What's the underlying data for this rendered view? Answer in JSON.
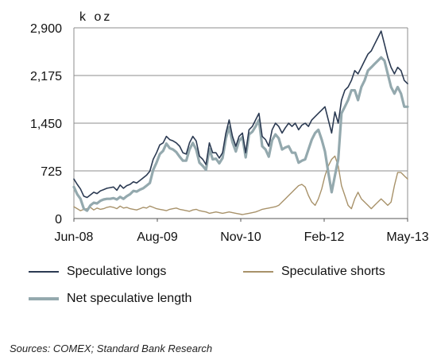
{
  "chart_data": {
    "type": "line",
    "unit_label": "k oz",
    "x_ticks": [
      "Jun-08",
      "Aug-09",
      "Nov-10",
      "Feb-12",
      "May-13"
    ],
    "y_ticks": [
      "2,900",
      "2,175",
      "1,450",
      "725",
      "0"
    ],
    "ylim": [
      0,
      2900
    ],
    "grid": true,
    "legend_position": "bottom",
    "series": [
      {
        "name": "Speculative longs",
        "color": "#2b3a52",
        "values": [
          600,
          520,
          450,
          340,
          320,
          360,
          400,
          380,
          420,
          440,
          460,
          470,
          480,
          430,
          510,
          460,
          500,
          520,
          560,
          540,
          580,
          620,
          660,
          720,
          900,
          1000,
          1120,
          1150,
          1250,
          1200,
          1180,
          1150,
          1100,
          1000,
          980,
          1150,
          1250,
          1180,
          950,
          900,
          820,
          1150,
          1000,
          1000,
          920,
          1000,
          1300,
          1500,
          1250,
          1100,
          1250,
          1300,
          1000,
          1350,
          1400,
          1500,
          1600,
          1250,
          1200,
          1100,
          1350,
          1450,
          1400,
          1300,
          1380,
          1450,
          1400,
          1450,
          1350,
          1420,
          1450,
          1400,
          1500,
          1550,
          1600,
          1650,
          1700,
          1500,
          1300,
          1620,
          1450,
          1800,
          1950,
          2000,
          2100,
          2250,
          2200,
          2300,
          2400,
          2500,
          2550,
          2650,
          2750,
          2850,
          2650,
          2450,
          2300,
          2200,
          2300,
          2250,
          2100,
          2050
        ]
      },
      {
        "name": "Speculative shorts",
        "color": "#a8926a",
        "values": [
          180,
          150,
          120,
          140,
          150,
          170,
          130,
          160,
          140,
          150,
          170,
          180,
          170,
          150,
          190,
          160,
          170,
          150,
          140,
          130,
          150,
          170,
          160,
          190,
          170,
          150,
          140,
          130,
          120,
          140,
          150,
          160,
          140,
          130,
          120,
          110,
          130,
          140,
          120,
          110,
          100,
          80,
          90,
          100,
          90,
          80,
          90,
          100,
          90,
          80,
          70,
          60,
          70,
          80,
          90,
          100,
          120,
          140,
          150,
          160,
          170,
          180,
          200,
          250,
          300,
          350,
          400,
          450,
          500,
          520,
          480,
          350,
          250,
          200,
          300,
          450,
          650,
          800,
          900,
          950,
          800,
          500,
          350,
          200,
          150,
          300,
          400,
          300,
          250,
          200,
          150,
          200,
          250,
          300,
          250,
          200,
          250,
          500,
          700,
          700,
          650,
          600
        ]
      },
      {
        "name": "Net speculative length",
        "color": "#94a9ae",
        "values": [
          480,
          370,
          300,
          150,
          120,
          200,
          240,
          230,
          270,
          290,
          300,
          300,
          310,
          290,
          330,
          300,
          340,
          370,
          420,
          410,
          440,
          460,
          500,
          540,
          740,
          850,
          980,
          1030,
          1140,
          1070,
          1050,
          1010,
          940,
          880,
          880,
          1050,
          1150,
          1050,
          850,
          800,
          740,
          1060,
          900,
          910,
          840,
          920,
          1220,
          1390,
          1160,
          1020,
          1180,
          1240,
          930,
          1280,
          1320,
          1400,
          1500,
          1100,
          1050,
          940,
          1190,
          1280,
          1220,
          1050,
          1080,
          1100,
          1000,
          1000,
          850,
          880,
          900,
          1050,
          1200,
          1300,
          1350,
          1200,
          1020,
          700,
          400,
          650,
          900,
          1600,
          1700,
          1800,
          1950,
          1950,
          1800,
          2000,
          2100,
          2250,
          2300,
          2350,
          2400,
          2450,
          2400,
          2200,
          2000,
          1900,
          2000,
          1900,
          1700,
          1700
        ]
      }
    ]
  },
  "legend": {
    "longs": "Speculative longs",
    "shorts": "Speculative shorts",
    "net": "Net speculative length"
  },
  "source": "Sources: COMEX; Standard Bank Research"
}
